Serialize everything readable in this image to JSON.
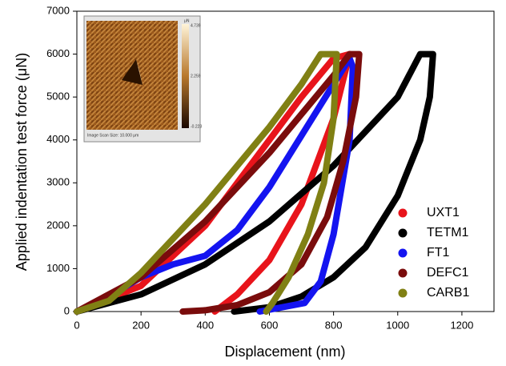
{
  "chart_data": {
    "type": "line",
    "x_label": "Displacement (nm)",
    "y_label": "Applied indentation test force (μN)",
    "xlim": [
      0,
      1300
    ],
    "xticks": [
      0,
      200,
      400,
      600,
      800,
      1000,
      1200
    ],
    "ylim": [
      0,
      7000
    ],
    "yticks": [
      0,
      1000,
      2000,
      3000,
      4000,
      5000,
      6000,
      7000
    ],
    "legend": "right",
    "series": [
      {
        "name": "UXT1",
        "color": "#e8141b",
        "x": [
          0,
          200,
          400,
          600,
          700,
          800,
          850,
          800,
          700,
          600,
          500,
          430
        ],
        "values": [
          0,
          600,
          2000,
          4000,
          5000,
          5900,
          6000,
          4500,
          2500,
          1200,
          400,
          0
        ]
      },
      {
        "name": "TETM1",
        "color": "#000000",
        "x": [
          0,
          200,
          400,
          600,
          800,
          1000,
          1070,
          1110,
          1100,
          1070,
          1000,
          900,
          800,
          700,
          600,
          490
        ],
        "values": [
          0,
          400,
          1100,
          2100,
          3400,
          5000,
          6000,
          6000,
          5000,
          4000,
          2700,
          1500,
          800,
          350,
          100,
          0
        ]
      },
      {
        "name": "FT1",
        "color": "#1414f0",
        "x": [
          0,
          100,
          200,
          300,
          400,
          500,
          600,
          700,
          800,
          850,
          860,
          850,
          800,
          760,
          710,
          570
        ],
        "values": [
          0,
          350,
          800,
          1100,
          1300,
          1900,
          2900,
          4100,
          5300,
          5900,
          5700,
          4000,
          1800,
          700,
          200,
          0
        ]
      },
      {
        "name": "DEFC1",
        "color": "#7a0c0c",
        "x": [
          0,
          200,
          400,
          600,
          700,
          800,
          850,
          880,
          870,
          830,
          780,
          700,
          600,
          500,
          400,
          330
        ],
        "values": [
          0,
          800,
          2100,
          3700,
          4600,
          5500,
          6000,
          6000,
          5000,
          3500,
          2200,
          1100,
          450,
          150,
          30,
          0
        ]
      },
      {
        "name": "CARB1",
        "color": "#808014",
        "x": [
          0,
          100,
          200,
          400,
          600,
          700,
          760,
          810,
          800,
          770,
          720,
          660,
          610,
          590
        ],
        "values": [
          0,
          250,
          900,
          2500,
          4300,
          5300,
          6000,
          6000,
          4500,
          3000,
          1800,
          800,
          200,
          0
        ]
      }
    ]
  },
  "inset": {
    "unit": "μN",
    "scale_labels": [
      "4.739",
      "2.259",
      "-0.223"
    ],
    "caption": "Image Scan Size: 10.000 μm"
  }
}
